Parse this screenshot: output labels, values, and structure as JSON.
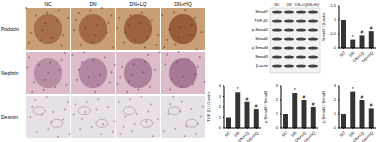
{
  "micrographs": {
    "columns": [
      "NC",
      "DN",
      "DN+LQ",
      "DN+HQ"
    ],
    "rows": [
      "Podocin",
      "Nephrin",
      "Desmin"
    ]
  },
  "western_blot": {
    "columns": [
      "NC",
      "DN",
      "DN+LQ",
      "DN+HQ"
    ],
    "rows": [
      "Smad7",
      "TGF-β1",
      "p-Smad2",
      "Smad2",
      "p-Smad3",
      "Smad3",
      "β-actin"
    ]
  },
  "chart_data": [
    {
      "type": "bar",
      "ylabel": "Smad7 / β-actin",
      "categories": [
        "NC",
        "DN",
        "DN+LQ",
        "DN+HQ"
      ],
      "values": [
        1.0,
        0.3,
        0.45,
        0.6
      ],
      "annotations": [
        null,
        "*",
        "#",
        "#"
      ],
      "color": "#333333",
      "ylim": [
        0,
        1.5
      ],
      "yticks": [
        0,
        0.5,
        1,
        1.5
      ],
      "grid": false
    },
    {
      "type": "bar",
      "ylabel": "TGF-β1 / β-actin",
      "categories": [
        "NC",
        "DN",
        "DN+LQ",
        "DN+HQ"
      ],
      "values": [
        1.0,
        3.4,
        2.5,
        1.8
      ],
      "annotations": [
        null,
        "*",
        "#",
        "#"
      ],
      "color": "#333333",
      "ylim": [
        0,
        4
      ],
      "yticks": [
        0,
        1,
        2,
        3,
        4
      ],
      "grid": false
    },
    {
      "type": "bar",
      "ylabel": "p-Smad2 / Smad2",
      "categories": [
        "NC",
        "DN",
        "DN+LQ",
        "DN+HQ"
      ],
      "values": [
        1.0,
        2.5,
        2.0,
        1.5
      ],
      "annotations": [
        null,
        "*",
        "#",
        "#"
      ],
      "color": "#333333",
      "ylim": [
        0,
        3
      ],
      "yticks": [
        0,
        1,
        2,
        3
      ],
      "grid": false
    },
    {
      "type": "bar",
      "ylabel": "p-Smad3 / Smad3",
      "categories": [
        "NC",
        "DN",
        "DN+LQ",
        "DN+HQ"
      ],
      "values": [
        1.0,
        2.6,
        2.0,
        1.4
      ],
      "annotations": [
        null,
        "*",
        "#",
        "#"
      ],
      "color": "#333333",
      "ylim": [
        0,
        3
      ],
      "yticks": [
        0,
        1,
        2,
        3
      ],
      "grid": false
    }
  ]
}
